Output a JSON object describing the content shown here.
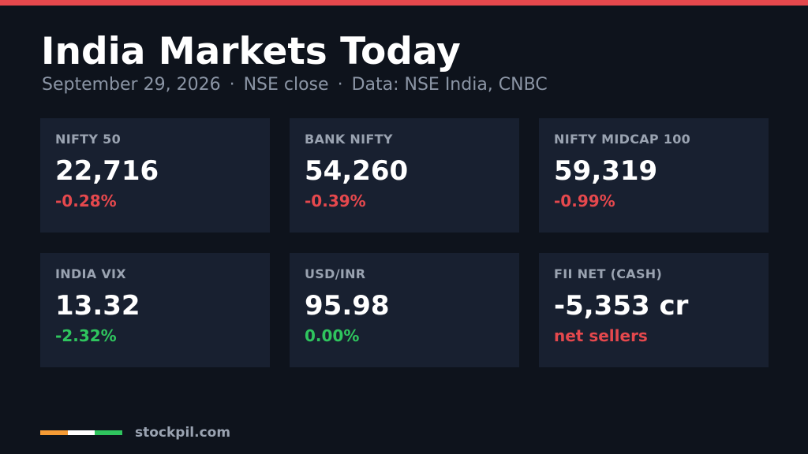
{
  "header": {
    "title": "India Markets Today",
    "date": "September 29, 2026",
    "separator": "·",
    "session": "NSE close",
    "source": "Data: NSE India, CNBC",
    "accent_color": "#e5484d"
  },
  "cards": [
    {
      "label": "NIFTY 50",
      "value": "22,716",
      "change": "-0.28%",
      "direction": "negative"
    },
    {
      "label": "BANK NIFTY",
      "value": "54,260",
      "change": "-0.39%",
      "direction": "negative"
    },
    {
      "label": "NIFTY MIDCAP 100",
      "value": "59,319",
      "change": "-0.99%",
      "direction": "negative"
    },
    {
      "label": "INDIA VIX",
      "value": "13.32",
      "change": "-2.32%",
      "direction": "positive"
    },
    {
      "label": "USD/INR",
      "value": "95.98",
      "change": "0.00%",
      "direction": "positive"
    },
    {
      "label": "FII NET (CASH)",
      "value": "-5,353 cr",
      "change": "net sellers",
      "direction": "negative"
    }
  ],
  "colors": {
    "negative": "#e5484d",
    "positive": "#2fc55e",
    "flag_saffron": "#f59b35",
    "flag_white": "#ffffff",
    "flag_green": "#2fc55e"
  },
  "footer": {
    "brand": "stockpil.com"
  }
}
